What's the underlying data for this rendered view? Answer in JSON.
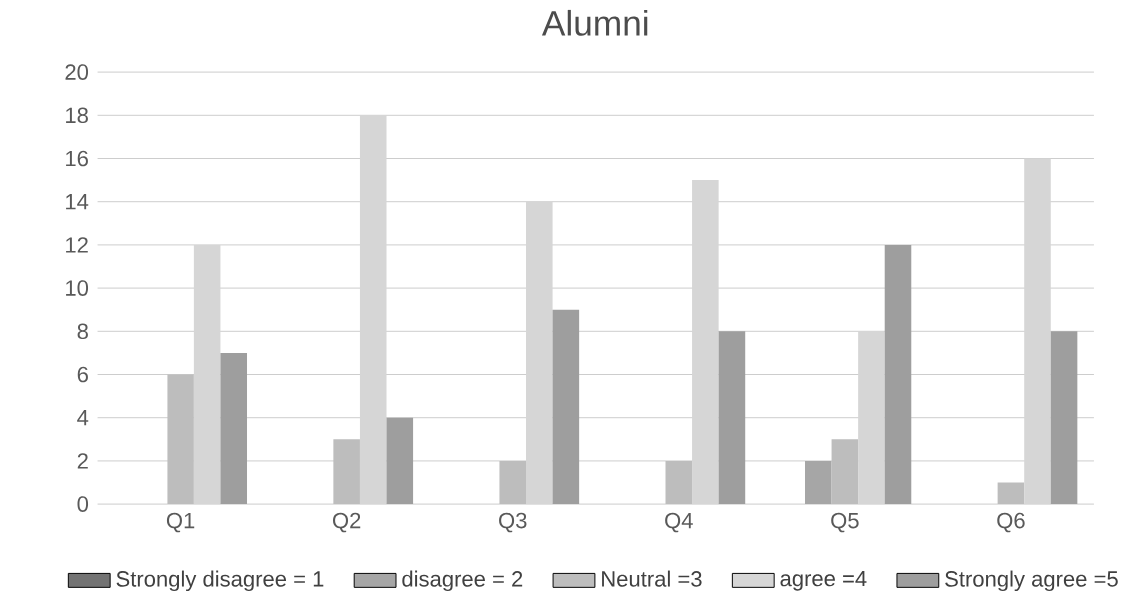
{
  "chart_data": {
    "type": "bar",
    "title": "Alumni",
    "categories": [
      "Q1",
      "Q2",
      "Q3",
      "Q4",
      "Q5",
      "Q6"
    ],
    "series": [
      {
        "name": "Strongly disagree = 1",
        "color": "#737373",
        "values": [
          0,
          0,
          0,
          0,
          0,
          0
        ]
      },
      {
        "name": "disagree = 2",
        "color": "#a6a6a6",
        "values": [
          0,
          0,
          0,
          0,
          2,
          0
        ]
      },
      {
        "name": "Neutral =3",
        "color": "#bdbdbd",
        "values": [
          6,
          3,
          2,
          2,
          3,
          1
        ]
      },
      {
        "name": "agree =4",
        "color": "#d6d6d6",
        "values": [
          12,
          18,
          14,
          15,
          8,
          16
        ]
      },
      {
        "name": "Strongly agree =5",
        "color": "#9e9e9e",
        "values": [
          7,
          4,
          9,
          8,
          12,
          8
        ]
      }
    ],
    "ylim": [
      0,
      20
    ],
    "yticks": [
      0,
      2,
      4,
      6,
      8,
      10,
      12,
      14,
      16,
      18,
      20
    ],
    "grid": "y",
    "legend": "bottom"
  }
}
